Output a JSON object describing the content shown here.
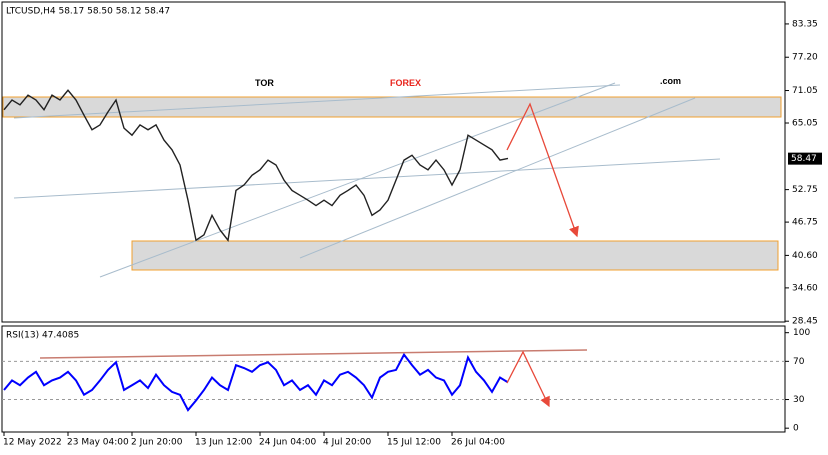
{
  "brand": {
    "tor": "TOR",
    "forex": "FOREX",
    "com": ".com"
  },
  "chart_data": [
    {
      "type": "line",
      "title": "LTCUSD,H4  58.17 58.50 58.12 58.47",
      "color": "#222222",
      "values": [
        67.5,
        69.3,
        68.4,
        70.2,
        69.3,
        67.5,
        70.2,
        69.3,
        71.1,
        69.3,
        66.5,
        63.8,
        64.7,
        67.1,
        69.3,
        64.1,
        62.8,
        64.7,
        63.8,
        64.7,
        61.9,
        60.1,
        57.3,
        50.8,
        43.4,
        44.4,
        48.0,
        45.3,
        43.4,
        52.6,
        53.6,
        55.4,
        56.4,
        58.2,
        57.3,
        54.5,
        52.6,
        51.7,
        50.8,
        49.8,
        50.8,
        49.8,
        51.7,
        52.6,
        53.6,
        51.7,
        48.0,
        49.0,
        50.8,
        54.5,
        58.2,
        59.1,
        57.3,
        56.4,
        58.2,
        56.4,
        53.6,
        56.4,
        62.8,
        61.9,
        61.0,
        60.1,
        58.2,
        58.5
      ],
      "last_price": 58.47,
      "ylim": [
        28.3,
        87.4
      ],
      "yticks": [
        83.35,
        {
          "value": 77.2,
          "label": "77.20"
        },
        71.05,
        65.05,
        52.75,
        46.75,
        {
          "value": 40.6,
          "label": "40.60"
        },
        {
          "value": 34.6,
          "label": "34.60"
        },
        28.45
      ]
    },
    {
      "type": "line",
      "title": "RSI(13) 47.4085",
      "color": "#0000ff",
      "values": [
        40,
        50,
        45,
        53,
        59,
        45,
        50,
        53,
        59,
        50,
        35,
        40,
        50,
        61,
        69,
        40,
        45,
        50,
        42,
        56,
        45,
        38,
        35,
        19,
        29,
        40,
        53,
        45,
        40,
        66,
        63,
        59,
        66,
        69,
        61,
        45,
        50,
        40,
        45,
        35,
        50,
        45,
        56,
        59,
        53,
        45,
        32,
        53,
        59,
        61,
        77,
        66,
        56,
        61,
        53,
        50,
        35,
        45,
        74,
        59,
        50,
        38,
        53,
        48
      ],
      "categories": [
        "12 May 2022",
        null,
        null,
        null,
        null,
        null,
        null,
        null,
        "23 May 04:00",
        null,
        null,
        null,
        null,
        null,
        null,
        null,
        "2 Jun 20:00",
        null,
        null,
        null,
        null,
        null,
        null,
        null,
        "13 Jun 12:00",
        null,
        null,
        null,
        null,
        null,
        null,
        null,
        "24 Jun 04:00",
        null,
        null,
        null,
        null,
        null,
        null,
        null,
        "4 Jul 20:00",
        null,
        null,
        null,
        null,
        null,
        null,
        null,
        "15 Jul 12:00",
        null,
        null,
        null,
        null,
        null,
        null,
        null,
        "26 Jul 04:00",
        null,
        null,
        null,
        null,
        null,
        null,
        null
      ],
      "ylim": [
        -4,
        107
      ],
      "yticks": [
        100,
        70,
        30,
        0
      ],
      "dashed_ticks": [
        70,
        30
      ]
    }
  ]
}
